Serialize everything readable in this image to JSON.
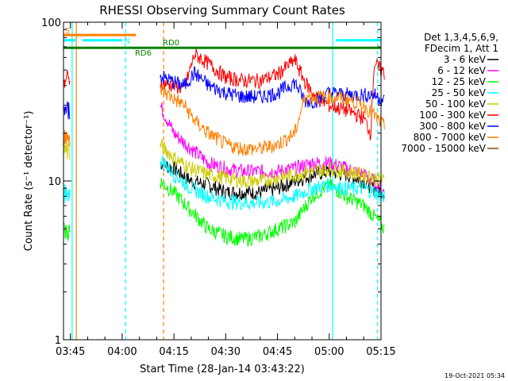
{
  "chart_data": {
    "type": "line",
    "title": "RHESSI Observing Summary Count Rates",
    "xlabel": "Start Time (28-Jan-14 03:43:22)",
    "ylabel": "Count Rate (s⁻¹ detector⁻¹)",
    "y_scale": "log",
    "ylim": [
      1,
      100
    ],
    "y_ticks": [
      {
        "value": 1,
        "label": "1"
      },
      {
        "value": 10,
        "label": "10"
      },
      {
        "value": 100,
        "label": "100"
      }
    ],
    "xlim_minutes": [
      3.0,
      95.0
    ],
    "x_ticks": [
      {
        "minute": 5,
        "label": "03:45"
      },
      {
        "minute": 20,
        "label": "04:00"
      },
      {
        "minute": 35,
        "label": "04:15"
      },
      {
        "minute": 50,
        "label": "04:30"
      },
      {
        "minute": 65,
        "label": "04:45"
      },
      {
        "minute": 80,
        "label": "05:00"
      },
      {
        "minute": 95,
        "label": "05:15"
      }
    ],
    "legend_header": [
      "Det 1,3,4,5,6,9,",
      "FDecim 1, Att 1"
    ],
    "legend_placement": "right",
    "timestamp": "19-Oct-2021 05:34",
    "series": [
      {
        "name": "3 - 6 keV",
        "color": "#000000",
        "points": [
          [
            31,
            13
          ],
          [
            35,
            12
          ],
          [
            40,
            10
          ],
          [
            45,
            9.5
          ],
          [
            50,
            8.5
          ],
          [
            55,
            8.5
          ],
          [
            60,
            8.5
          ],
          [
            65,
            9
          ],
          [
            70,
            10
          ],
          [
            75,
            11
          ],
          [
            80,
            11.5
          ],
          [
            85,
            11
          ],
          [
            90,
            10
          ],
          [
            93,
            9
          ],
          [
            96,
            8.5
          ]
        ]
      },
      {
        "name": "6 - 12 keV",
        "color": "#ff00ff",
        "points": [
          [
            31,
            30
          ],
          [
            35,
            20
          ],
          [
            40,
            16
          ],
          [
            45,
            13
          ],
          [
            50,
            12
          ],
          [
            55,
            11.5
          ],
          [
            60,
            11.5
          ],
          [
            65,
            11.5
          ],
          [
            70,
            12
          ],
          [
            75,
            13
          ],
          [
            80,
            13
          ],
          [
            85,
            12
          ],
          [
            90,
            11
          ],
          [
            93,
            10
          ],
          [
            96,
            8.5
          ]
        ]
      },
      {
        "name": "12 - 25 keV",
        "color": "#00ff00",
        "points": [
          [
            31,
            10
          ],
          [
            35,
            8.5
          ],
          [
            40,
            6.5
          ],
          [
            45,
            5
          ],
          [
            50,
            4.5
          ],
          [
            55,
            4.3
          ],
          [
            60,
            4.5
          ],
          [
            65,
            5
          ],
          [
            70,
            5.5
          ],
          [
            75,
            8
          ],
          [
            80,
            9.5
          ],
          [
            85,
            8
          ],
          [
            90,
            7
          ],
          [
            93,
            6
          ],
          [
            96,
            5
          ]
        ]
      },
      {
        "name": "25 - 50 keV",
        "color": "#00ffff",
        "points": [
          [
            31,
            14
          ],
          [
            35,
            11
          ],
          [
            40,
            9
          ],
          [
            45,
            8
          ],
          [
            50,
            7.5
          ],
          [
            55,
            7.3
          ],
          [
            60,
            7.3
          ],
          [
            65,
            7.5
          ],
          [
            70,
            8
          ],
          [
            75,
            9
          ],
          [
            80,
            9.5
          ],
          [
            85,
            9
          ],
          [
            90,
            9
          ],
          [
            93,
            8.5
          ],
          [
            96,
            8
          ]
        ]
      },
      {
        "name": "50 - 100 keV",
        "color": "#cccc00",
        "points": [
          [
            31,
            17
          ],
          [
            35,
            14
          ],
          [
            40,
            12
          ],
          [
            45,
            11
          ],
          [
            50,
            10.5
          ],
          [
            55,
            10
          ],
          [
            60,
            10
          ],
          [
            65,
            10.5
          ],
          [
            70,
            11
          ],
          [
            75,
            11.5
          ],
          [
            80,
            12
          ],
          [
            85,
            11.5
          ],
          [
            90,
            11
          ],
          [
            93,
            10.5
          ],
          [
            96,
            10
          ]
        ]
      },
      {
        "name": "100 - 300 keV",
        "color": "#ff0000",
        "points": [
          [
            31,
            42
          ],
          [
            35,
            40
          ],
          [
            38,
            38
          ],
          [
            41,
            63
          ],
          [
            45,
            55
          ],
          [
            50,
            45
          ],
          [
            55,
            43
          ],
          [
            60,
            43
          ],
          [
            65,
            47
          ],
          [
            70,
            58
          ],
          [
            73,
            42
          ],
          [
            76,
            34
          ],
          [
            80,
            30
          ],
          [
            85,
            28
          ],
          [
            90,
            25
          ],
          [
            92,
            20
          ],
          [
            93,
            55
          ],
          [
            96,
            48
          ]
        ]
      },
      {
        "name": "300 - 800 keV",
        "color": "#0000ff",
        "points": [
          [
            31,
            46
          ],
          [
            35,
            42
          ],
          [
            38,
            40
          ],
          [
            41,
            48
          ],
          [
            45,
            40
          ],
          [
            50,
            36
          ],
          [
            55,
            34
          ],
          [
            60,
            34
          ],
          [
            65,
            36
          ],
          [
            70,
            42
          ],
          [
            73,
            32
          ],
          [
            76,
            32
          ],
          [
            80,
            36
          ],
          [
            85,
            35
          ],
          [
            90,
            35
          ],
          [
            93,
            35
          ],
          [
            96,
            32
          ]
        ]
      },
      {
        "name": "800 - 7000 keV",
        "color": "#ff8000",
        "points": [
          [
            31,
            38
          ],
          [
            35,
            33
          ],
          [
            38,
            30
          ],
          [
            41,
            24
          ],
          [
            45,
            20
          ],
          [
            50,
            17
          ],
          [
            55,
            16
          ],
          [
            60,
            16
          ],
          [
            65,
            17
          ],
          [
            70,
            20
          ],
          [
            73,
            34
          ],
          [
            76,
            34
          ],
          [
            80,
            34
          ],
          [
            85,
            33
          ],
          [
            90,
            30
          ],
          [
            93,
            26
          ],
          [
            96,
            22
          ]
        ]
      },
      {
        "name": "7000 - 15000 keV",
        "color": "#8b4513",
        "points": []
      }
    ],
    "left_fragment": [
      {
        "color": "#ff0000",
        "value": 44
      },
      {
        "color": "#0000ff",
        "value": 28
      },
      {
        "color": "#ff8000",
        "value": 19
      },
      {
        "color": "#cccc00",
        "value": 16
      },
      {
        "color": "#00ffff",
        "value": 8.5
      },
      {
        "color": "#00ff00",
        "value": 4.8
      }
    ],
    "flags": [
      {
        "label": "S",
        "color": "#ff8000",
        "value": 83,
        "from_minute": 3.0,
        "to_minute": 24.0
      },
      {
        "label": "N",
        "color": "#00ffff",
        "value": 77,
        "from_minute": 3.0,
        "to_minute": 6.5
      },
      {
        "label": "N",
        "color": "#00ffff",
        "value": 77,
        "from_minute": 8.5,
        "to_minute": 20.0
      },
      {
        "label": "N",
        "color": "#00ffff",
        "value": 77,
        "from_minute": 82.0,
        "to_minute": 95.0
      },
      {
        "label": "RD0",
        "color": "#008000",
        "value": 69,
        "from_minute": 38.0,
        "to_minute": 95.0
      },
      {
        "label": "RD6",
        "color": "#008000",
        "value": 69,
        "from_minute": 3.0,
        "to_minute": 38.0
      }
    ],
    "vlines": [
      {
        "minute": 5.5,
        "color": "#00ffff",
        "dashed": false
      },
      {
        "minute": 6.7,
        "color": "#ff8000",
        "dashed": false
      },
      {
        "minute": 21.0,
        "color": "#00ffff",
        "dashed": true
      },
      {
        "minute": 32.0,
        "color": "#ff8000",
        "dashed": true
      },
      {
        "minute": 81.0,
        "color": "#00ffff",
        "dashed": false
      },
      {
        "minute": 94.0,
        "color": "#00ffff",
        "dashed": true
      }
    ]
  }
}
